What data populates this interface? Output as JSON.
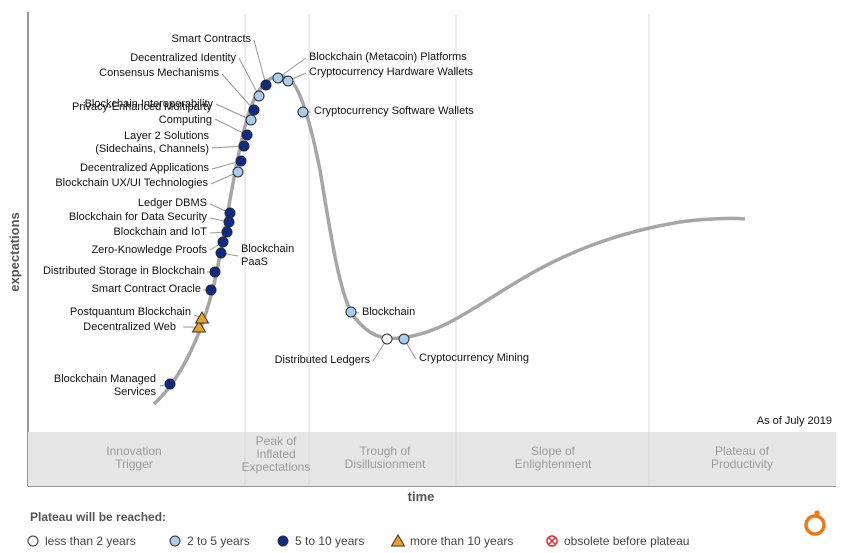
{
  "chart_data": {
    "type": "scatter",
    "xlabel": "time",
    "ylabel": "expectations",
    "as_of": "As of July 2019",
    "phases": [
      {
        "lines": [
          "Innovation",
          "Trigger"
        ]
      },
      {
        "lines": [
          "Peak of",
          "Inflated",
          "Expectations"
        ]
      },
      {
        "lines": [
          "Trough of",
          "Disillusionment"
        ]
      },
      {
        "lines": [
          "Slope of",
          "Enlightenment"
        ]
      },
      {
        "lines": [
          "Plateau of",
          "Productivity"
        ]
      }
    ],
    "legend": {
      "title": "Plateau will be reached:",
      "items": [
        {
          "key": "lt2",
          "label": "less than 2 years",
          "color": "#ffffff"
        },
        {
          "key": "2to5",
          "label": "2 to 5 years",
          "color": "#a9cdef"
        },
        {
          "key": "5to10",
          "label": "5 to 10 years",
          "color": "#0b2a8a"
        },
        {
          "key": "gt10",
          "label": "more than 10 years",
          "color": "#f0a020"
        },
        {
          "key": "obsolete",
          "label": "obsolete before plateau",
          "color": "#e03030"
        }
      ]
    },
    "technologies": [
      {
        "lines": [
          "Blockchain Managed",
          "Services"
        ],
        "category": "5to10"
      },
      {
        "lines": [
          "Decentralized Web"
        ],
        "category": "gt10"
      },
      {
        "lines": [
          "Postquantum Blockchain"
        ],
        "category": "gt10"
      },
      {
        "lines": [
          "Smart Contract Oracle"
        ],
        "category": "5to10"
      },
      {
        "lines": [
          "Distributed Storage in Blockchain"
        ],
        "category": "5to10"
      },
      {
        "lines": [
          "Blockchain",
          "PaaS"
        ],
        "category": "5to10"
      },
      {
        "lines": [
          "Zero-Knowledge Proofs"
        ],
        "category": "5to10"
      },
      {
        "lines": [
          "Blockchain and IoT"
        ],
        "category": "5to10"
      },
      {
        "lines": [
          "Blockchain for Data Security"
        ],
        "category": "5to10"
      },
      {
        "lines": [
          "Ledger DBMS"
        ],
        "category": "5to10"
      },
      {
        "lines": [
          "Blockchain UX/UI Technologies"
        ],
        "category": "2to5"
      },
      {
        "lines": [
          "Decentralized Applications"
        ],
        "category": "5to10"
      },
      {
        "lines": [
          "Layer 2 Solutions",
          "(Sidechains, Channels)"
        ],
        "category": "5to10"
      },
      {
        "lines": [
          "Privacy-Enhanced Multiparty",
          "Computing"
        ],
        "category": "5to10"
      },
      {
        "lines": [
          "Blockchain Interoperability"
        ],
        "category": "2to5"
      },
      {
        "lines": [
          "Consensus Mechanisms"
        ],
        "category": "5to10"
      },
      {
        "lines": [
          "Decentralized Identity"
        ],
        "category": "2to5"
      },
      {
        "lines": [
          "Smart Contracts"
        ],
        "category": "5to10"
      },
      {
        "lines": [
          "Blockchain (Metacoin) Platforms"
        ],
        "category": "2to5"
      },
      {
        "lines": [
          "Cryptocurrency Hardware Wallets"
        ],
        "category": "2to5"
      },
      {
        "lines": [
          "Cryptocurrency Software Wallets"
        ],
        "category": "2to5"
      },
      {
        "lines": [
          "Blockchain"
        ],
        "category": "2to5"
      },
      {
        "lines": [
          "Distributed Ledgers"
        ],
        "category": "lt2"
      },
      {
        "lines": [
          "Cryptocurrency Mining"
        ],
        "category": "2to5"
      }
    ]
  }
}
